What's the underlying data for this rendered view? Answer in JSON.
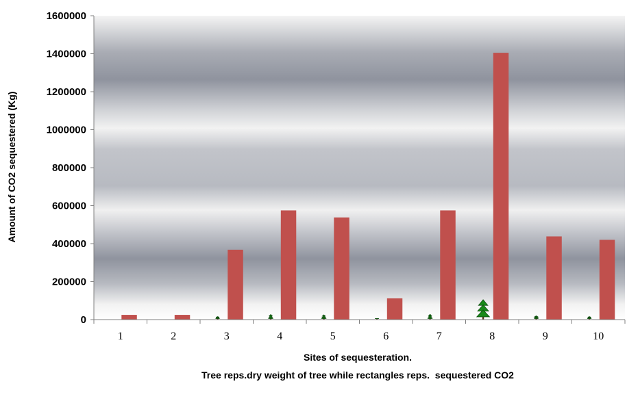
{
  "chart_data": {
    "type": "bar",
    "xlabel": "Sites of sequesteration.",
    "caption": "Tree reps.dry weight of tree while rectangles reps.  sequestered CO2",
    "ylabel": "Amount of CO2 sequestered (Kg)",
    "ylim": [
      0,
      1600000
    ],
    "yticks": [
      "0",
      "200000",
      "400000",
      "600000",
      "800000",
      "1000000",
      "1200000",
      "1400000",
      "1600000"
    ],
    "categories": [
      "1",
      "2",
      "3",
      "4",
      "5",
      "6",
      "7",
      "8",
      "9",
      "10"
    ],
    "series": [
      {
        "marker": "tree-icon",
        "color": "#1a8a1a",
        "values": [
          0,
          0,
          16000,
          27000,
          25000,
          5000,
          28000,
          105000,
          20000,
          16000
        ]
      },
      {
        "marker": "rectangle",
        "color": "#c0504d",
        "values": [
          25000,
          25000,
          368000,
          575000,
          538000,
          112000,
          575000,
          1405000,
          438000,
          420000
        ]
      }
    ],
    "grid": false,
    "legend": "none"
  }
}
